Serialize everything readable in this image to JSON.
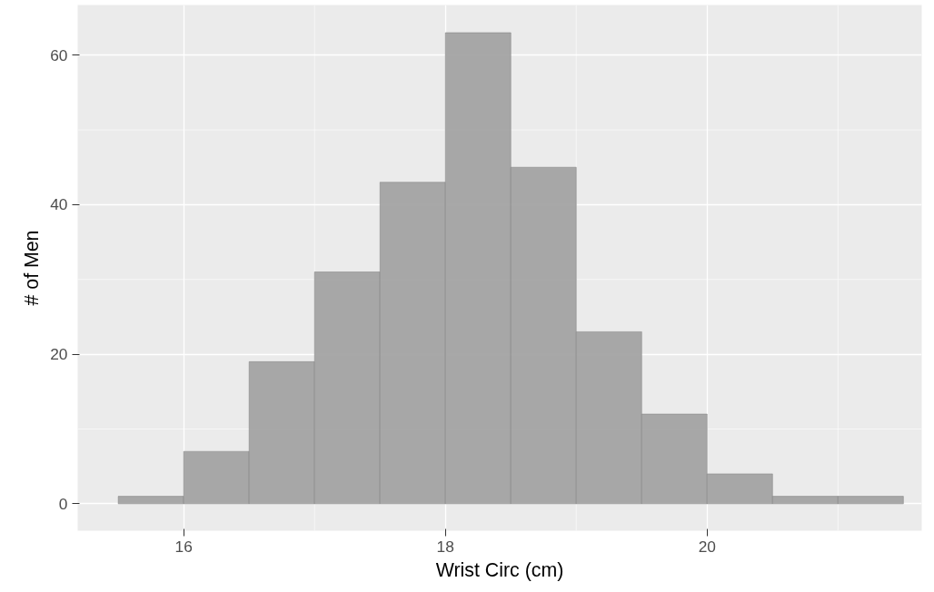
{
  "chart_data": {
    "type": "histogram",
    "xlabel": "Wrist Circ (cm)",
    "ylabel": "# of Men",
    "bins": [
      15.5,
      16,
      16.5,
      17,
      17.5,
      18,
      18.5,
      19,
      19.5,
      20,
      20.5,
      21,
      21.5
    ],
    "values": [
      1,
      7,
      19,
      31,
      43,
      63,
      45,
      23,
      12,
      4,
      1,
      1
    ],
    "color": "#a3a3a3",
    "xlim": [
      15.19,
      21.64
    ],
    "ylim": [
      -3.6,
      66.7
    ],
    "xticks": [
      16,
      18,
      20
    ],
    "yticks": [
      0,
      20,
      40,
      60
    ],
    "grid": true
  }
}
